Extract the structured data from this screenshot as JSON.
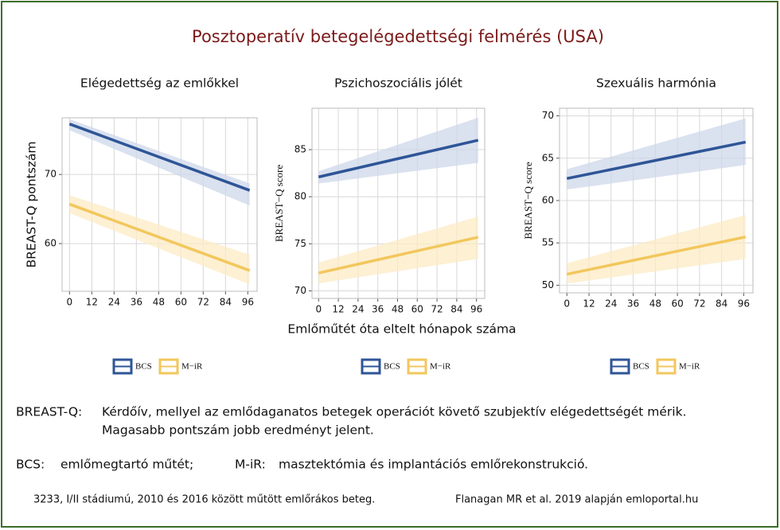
{
  "title": "Posztoperatív betegelégedettségi felmérés (USA)",
  "xlabel": "Emlőműtét óta eltelt hónapok száma",
  "notes": {
    "breastq_label": "BREAST-Q:",
    "breastq_line1": "Kérdőív, mellyel az emlődaganatos betegek operációt követő szubjektív elégedettségét mérik.",
    "breastq_line2": "Magasabb pontszám jobb eredményt jelent.",
    "bcs_label": "BCS:",
    "bcs_text": "emlőmegtartó műtét;",
    "mir_label": "M-iR:",
    "mir_text": "masztektómia és implantációs emlőrekonstrukció.",
    "footer_left": "3233, I/II stádiumú, 2010 és 2016 között műtött emlőrákos beteg.",
    "footer_right": "Flanagan MR et al. 2019 alapján emloportal.hu"
  },
  "chart_data": [
    {
      "type": "line",
      "title": "Elégedettség az emlőkkel",
      "ylabel": "BREAST-Q pontszám",
      "x": [
        0,
        97
      ],
      "xlim": [
        -4,
        101
      ],
      "xticks": [
        0,
        12,
        24,
        36,
        48,
        60,
        72,
        84,
        96
      ],
      "ylim": [
        53.1,
        78.2
      ],
      "yticks": [
        60,
        70
      ],
      "grid": true,
      "series": [
        {
          "name": "BCS",
          "color": "#2e5597",
          "band_color": "#cdd7ea",
          "values": [
            77.3,
            67.7
          ],
          "lower": [
            76.4,
            65.5
          ],
          "upper": [
            78.0,
            68.7
          ]
        },
        {
          "name": "M−iR",
          "color": "#f2c75c",
          "band_color": "#fcebc4",
          "values": [
            65.7,
            56.1
          ],
          "lower": [
            64.4,
            54.1
          ],
          "upper": [
            67.0,
            58.4
          ]
        }
      ]
    },
    {
      "type": "line",
      "title": "Pszichoszociális jólét",
      "ylabel": "BREAST−Q score",
      "x": [
        0,
        97
      ],
      "xlim": [
        -4,
        101
      ],
      "xticks": [
        0,
        12,
        24,
        36,
        48,
        60,
        72,
        84,
        96
      ],
      "ylim": [
        69.2,
        89.4
      ],
      "yticks": [
        70,
        75,
        80,
        85
      ],
      "grid": true,
      "series": [
        {
          "name": "BCS",
          "color": "#2e5597",
          "band_color": "#cdd7ea",
          "values": [
            82.1,
            86.0
          ],
          "lower": [
            81.4,
            83.6
          ],
          "upper": [
            82.7,
            88.4
          ]
        },
        {
          "name": "M−iR",
          "color": "#f2c75c",
          "band_color": "#fcebc4",
          "values": [
            71.9,
            75.7
          ],
          "lower": [
            70.8,
            73.4
          ],
          "upper": [
            73.0,
            77.9
          ]
        }
      ]
    },
    {
      "type": "line",
      "title": "Szexuális harmónia",
      "ylabel": "BREAST−Q score",
      "x": [
        0,
        97
      ],
      "xlim": [
        -4,
        101
      ],
      "xticks": [
        0,
        12,
        24,
        36,
        48,
        60,
        72,
        84,
        96
      ],
      "ylim": [
        49.1,
        70.9
      ],
      "yticks": [
        50,
        55,
        60,
        65,
        70
      ],
      "grid": true,
      "series": [
        {
          "name": "BCS",
          "color": "#2e5597",
          "band_color": "#cdd7ea",
          "values": [
            62.6,
            66.9
          ],
          "lower": [
            61.3,
            64.2
          ],
          "upper": [
            63.7,
            69.7
          ]
        },
        {
          "name": "M−iR",
          "color": "#f2c75c",
          "band_color": "#fcebc4",
          "values": [
            51.3,
            55.7
          ],
          "lower": [
            50.2,
            53.1
          ],
          "upper": [
            52.6,
            58.3
          ]
        }
      ]
    }
  ]
}
